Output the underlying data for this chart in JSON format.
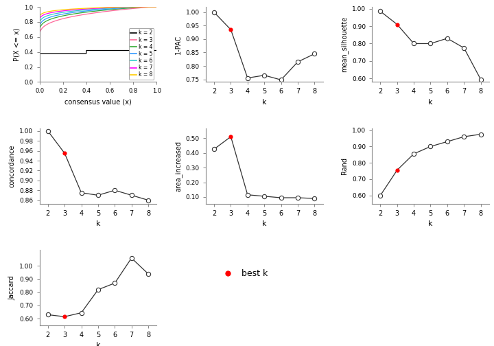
{
  "k_values": [
    2,
    3,
    4,
    5,
    6,
    7,
    8
  ],
  "best_k": 3,
  "pac_1minus": [
    1.0,
    0.935,
    0.755,
    0.765,
    0.748,
    0.815,
    0.845
  ],
  "mean_silhouette": [
    0.985,
    0.91,
    0.8,
    0.8,
    0.83,
    0.775,
    0.595
  ],
  "concordance": [
    1.0,
    0.955,
    0.875,
    0.87,
    0.88,
    0.87,
    0.86
  ],
  "area_increased": [
    0.425,
    0.51,
    0.115,
    0.105,
    0.095,
    0.095,
    0.09
  ],
  "rand": [
    0.6,
    0.755,
    0.855,
    0.9,
    0.93,
    0.96,
    0.975
  ],
  "jaccard": [
    0.63,
    0.615,
    0.645,
    0.82,
    0.87,
    1.06,
    0.94
  ],
  "ecdf_colors": [
    "#000000",
    "#FF6699",
    "#33AA33",
    "#3399FF",
    "#33CCCC",
    "#FF00FF",
    "#FFCC00"
  ],
  "ecdf_labels": [
    "k = 2",
    "k = 3",
    "k = 4",
    "k = 5",
    "k = 6",
    "k = 7",
    "k = 8"
  ],
  "background_color": "#FFFFFF",
  "line_color": "#333333",
  "open_circle_fc": "#FFFFFF",
  "open_circle_ec": "#333333",
  "filled_red": "#FF0000"
}
